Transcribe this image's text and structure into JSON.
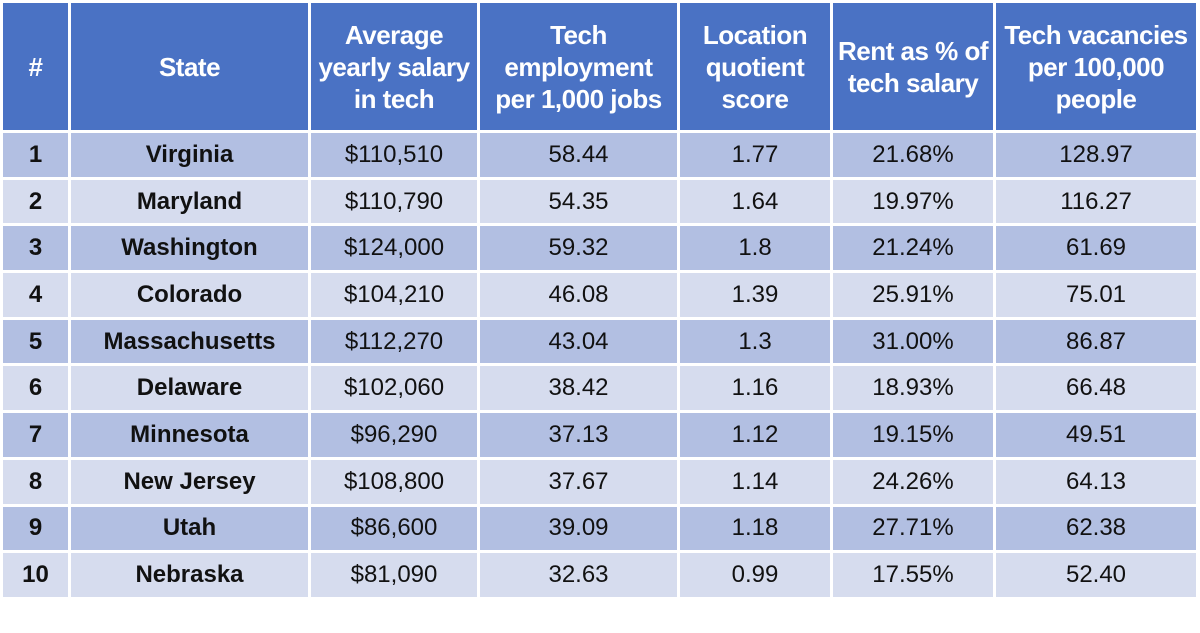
{
  "table": {
    "headers": [
      "#",
      "State",
      "Average yearly salary in tech",
      "Tech employment per 1,000 jobs",
      "Location quotient score",
      "Rent as % of tech salary",
      "Tech vacancies per 100,000 people"
    ],
    "rows": [
      [
        "1",
        "Virginia",
        "$110,510",
        "58.44",
        "1.77",
        "21.68%",
        "128.97"
      ],
      [
        "2",
        "Maryland",
        "$110,790",
        "54.35",
        "1.64",
        "19.97%",
        "116.27"
      ],
      [
        "3",
        "Washington",
        "$124,000",
        "59.32",
        "1.8",
        "21.24%",
        "61.69"
      ],
      [
        "4",
        "Colorado",
        "$104,210",
        "46.08",
        "1.39",
        "25.91%",
        "75.01"
      ],
      [
        "5",
        "Massachusetts",
        "$112,270",
        "43.04",
        "1.3",
        "31.00%",
        "86.87"
      ],
      [
        "6",
        "Delaware",
        "$102,060",
        "38.42",
        "1.16",
        "18.93%",
        "66.48"
      ],
      [
        "7",
        "Minnesota",
        "$96,290",
        "37.13",
        "1.12",
        "19.15%",
        "49.51"
      ],
      [
        "8",
        "New Jersey",
        "$108,800",
        "37.67",
        "1.14",
        "24.26%",
        "64.13"
      ],
      [
        "9",
        "Utah",
        "$86,600",
        "39.09",
        "1.18",
        "27.71%",
        "62.38"
      ],
      [
        "10",
        "Nebraska",
        "$81,090",
        "32.63",
        "0.99",
        "17.55%",
        "52.40"
      ]
    ]
  }
}
